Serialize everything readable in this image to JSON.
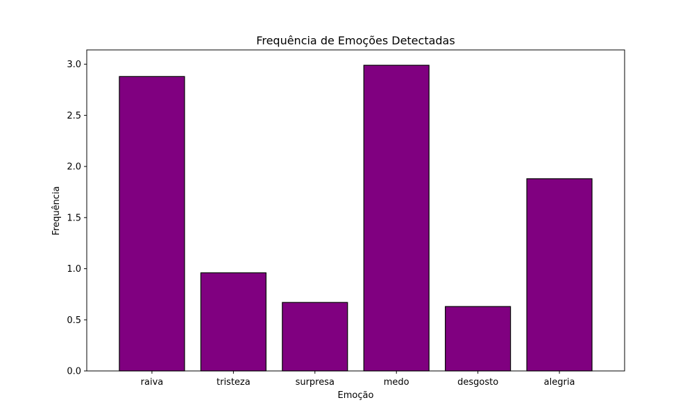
{
  "chart_data": {
    "type": "bar",
    "title": "Frequência de Emoções Detectadas",
    "xlabel": "Emoção",
    "ylabel": "Frequência",
    "categories": [
      "raiva",
      "tristeza",
      "surpresa",
      "medo",
      "desgosto",
      "alegria"
    ],
    "values": [
      2.88,
      0.96,
      0.67,
      2.99,
      0.63,
      1.88
    ],
    "ylim": [
      0,
      3.14
    ],
    "yticks": [
      0.0,
      0.5,
      1.0,
      1.5,
      2.0,
      2.5,
      3.0
    ],
    "ytick_labels": [
      "0.0",
      "0.5",
      "1.0",
      "1.5",
      "2.0",
      "2.5",
      "3.0"
    ],
    "grid": false,
    "legend": "none",
    "colors": {
      "bar_fill": "#800080",
      "bar_edge": "#000000",
      "axes": "#000000",
      "background": "#ffffff"
    }
  }
}
